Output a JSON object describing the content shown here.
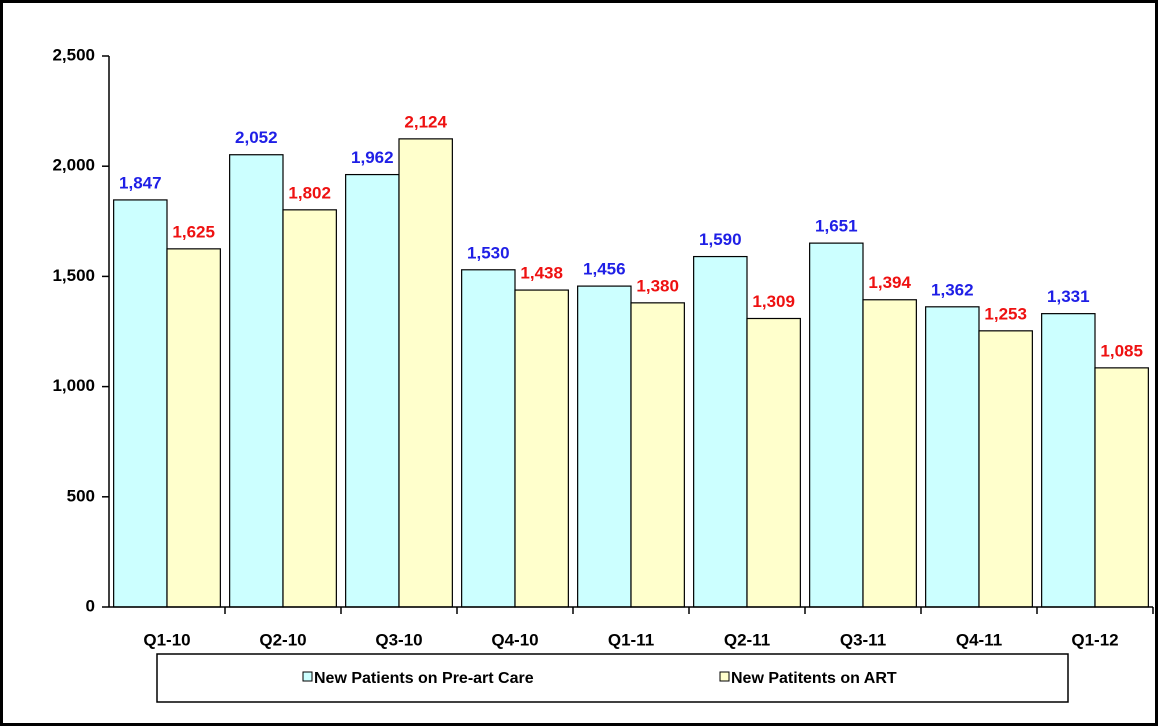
{
  "chart_data": {
    "type": "bar",
    "categories": [
      "Q1-10",
      "Q2-10",
      "Q3-10",
      "Q4-10",
      "Q1-11",
      "Q2-11",
      "Q3-11",
      "Q4-11",
      "Q1-12"
    ],
    "series": [
      {
        "name": "New Patients on Pre-art Care",
        "color": "#ccffff",
        "label_color": "#1f1fe6",
        "values": [
          1847,
          2052,
          1962,
          1530,
          1456,
          1590,
          1651,
          1362,
          1331
        ],
        "value_labels": [
          "1,847",
          "2,052",
          "1,962",
          "1,530",
          "1,456",
          "1,590",
          "1,651",
          "1,362",
          "1,331"
        ]
      },
      {
        "name": "New Patitents on ART",
        "color": "#ffffcc",
        "label_color": "#ee1111",
        "values": [
          1625,
          1802,
          2124,
          1438,
          1380,
          1309,
          1394,
          1253,
          1085
        ],
        "value_labels": [
          "1,625",
          "1,802",
          "2,124",
          "1,438",
          "1,380",
          "1,309",
          "1,394",
          "1,253",
          "1,085"
        ]
      }
    ],
    "ylim": [
      0,
      2500
    ],
    "yticks": [
      0,
      500,
      {
        "value": 1000,
        "label": "1,000"
      },
      {
        "value": 1500,
        "label": "1,500"
      },
      {
        "value": 2000,
        "label": "2,000"
      },
      {
        "value": 2500,
        "label": "2,500"
      }
    ],
    "grid": false,
    "legend": "bottom"
  }
}
